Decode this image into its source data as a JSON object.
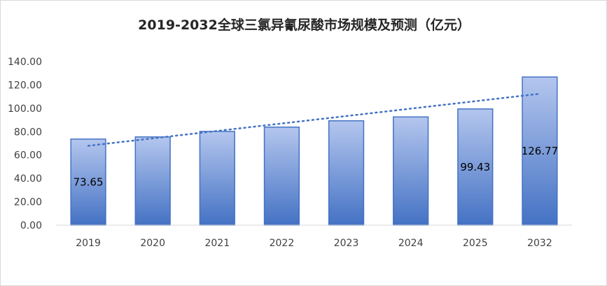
{
  "chart_data": {
    "type": "bar",
    "title": "2019-2032全球三氯异氰尿酸市场规模及预测（亿元）",
    "xlabel": "",
    "ylabel": "",
    "categories": [
      "2019",
      "2020",
      "2021",
      "2022",
      "2023",
      "2024",
      "2025",
      "2032"
    ],
    "series": [
      {
        "values": [
          73.65,
          75.5,
          80.2,
          83.9,
          89.3,
          92.6,
          99.43,
          126.77
        ]
      }
    ],
    "data_labels": [
      "73.65",
      "",
      "",
      "",
      "",
      "",
      "99.43",
      "126.77"
    ],
    "ylim": [
      0,
      140
    ],
    "yticks": [
      "0.00",
      "20.00",
      "40.00",
      "60.00",
      "80.00",
      "100.00",
      "120.00",
      "140.00"
    ],
    "trendline": {
      "type": "linear",
      "style": "dotted",
      "color": "#4472c4"
    },
    "bar_gradient": {
      "top": "#b4c6ee",
      "bottom": "#4472c4"
    },
    "legend": "none",
    "grid": false
  }
}
